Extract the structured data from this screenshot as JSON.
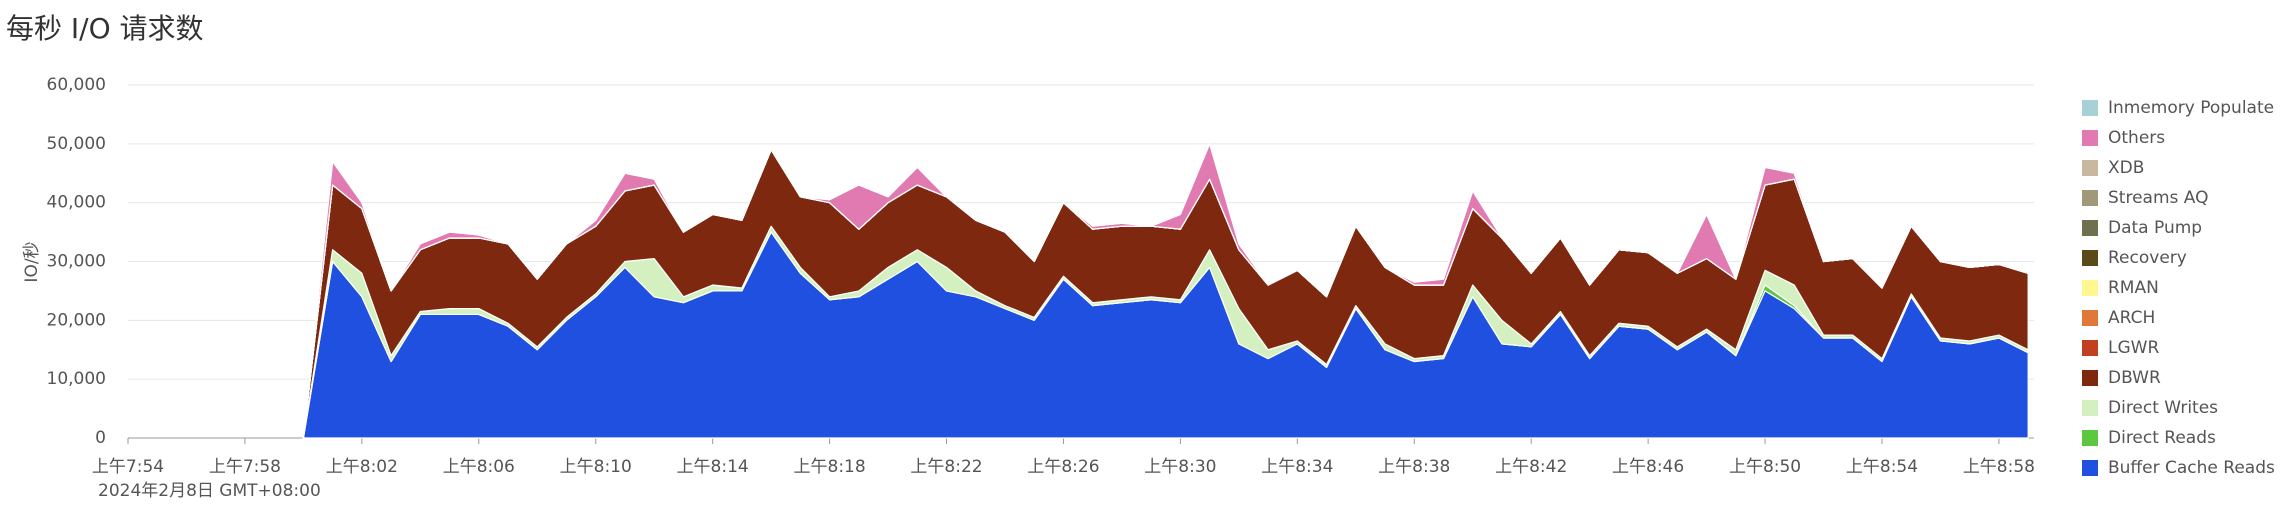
{
  "chart_data": {
    "type": "stacked_area",
    "title": "每秒 I/O 请求数",
    "y_label": "IO/秒",
    "x_sublabel": "2024年2月8日 GMT+08:00",
    "x": [
      480,
      481,
      482,
      483,
      484,
      485,
      486,
      487,
      488,
      489,
      490,
      491,
      492,
      493,
      494,
      495,
      496,
      497,
      498,
      499,
      500,
      501,
      502,
      503,
      504,
      505,
      506,
      507,
      508,
      509,
      510,
      511,
      512,
      513,
      514,
      515,
      516,
      517,
      518,
      519,
      520,
      521,
      522,
      523,
      524,
      525,
      526,
      527,
      528,
      529,
      530,
      531,
      532,
      533,
      534,
      535,
      536,
      537,
      538,
      539
    ],
    "xlim": [
      474,
      539.2
    ],
    "xticks": [
      {
        "value": 474,
        "label": "上午7:54"
      },
      {
        "value": 478,
        "label": "上午7:58"
      },
      {
        "value": 482,
        "label": "上午8:02"
      },
      {
        "value": 486,
        "label": "上午8:06"
      },
      {
        "value": 490,
        "label": "上午8:10"
      },
      {
        "value": 494,
        "label": "上午8:14"
      },
      {
        "value": 498,
        "label": "上午8:18"
      },
      {
        "value": 502,
        "label": "上午8:22"
      },
      {
        "value": 506,
        "label": "上午8:26"
      },
      {
        "value": 510,
        "label": "上午8:30"
      },
      {
        "value": 514,
        "label": "上午8:34"
      },
      {
        "value": 518,
        "label": "上午8:38"
      },
      {
        "value": 522,
        "label": "上午8:42"
      },
      {
        "value": 526,
        "label": "上午8:46"
      },
      {
        "value": 530,
        "label": "上午8:50"
      },
      {
        "value": 534,
        "label": "上午8:54"
      },
      {
        "value": 538,
        "label": "上午8:58"
      }
    ],
    "ylim": [
      0,
      60000
    ],
    "yticks": [
      0,
      {
        "value": 10000,
        "label": "10,000"
      },
      {
        "value": 20000,
        "label": "20,000"
      },
      {
        "value": 30000,
        "label": "30,000"
      },
      {
        "value": 40000,
        "label": "40,000"
      },
      {
        "value": 50000,
        "label": "50,000"
      },
      {
        "value": 60000,
        "label": "60,000"
      }
    ],
    "grid": true,
    "series": [
      {
        "name": "Inmemory Populate",
        "color": "#a8d0d8",
        "values": [
          0,
          0,
          0,
          0,
          0,
          0,
          0,
          0,
          0,
          0,
          0,
          0,
          0,
          0,
          0,
          0,
          0,
          0,
          0,
          0,
          0,
          0,
          0,
          0,
          0,
          0,
          0,
          0,
          0,
          0,
          0,
          0,
          0,
          0,
          0,
          0,
          0,
          0,
          0,
          0,
          0,
          0,
          0,
          0,
          0,
          0,
          0,
          0,
          0,
          0,
          0,
          0,
          0,
          0,
          0,
          0,
          0,
          0,
          0,
          0
        ]
      },
      {
        "name": "Others",
        "color": "#e07ab0",
        "values": [
          0,
          4000,
          1000,
          0,
          1000,
          1000,
          500,
          0,
          0,
          0,
          1000,
          3000,
          1000,
          0,
          0,
          0,
          0,
          0,
          500,
          7500,
          1000,
          3000,
          0,
          0,
          0,
          0,
          0,
          500,
          500,
          0,
          2500,
          6000,
          1000,
          0,
          0,
          0,
          0,
          0,
          500,
          1000,
          3000,
          0,
          0,
          0,
          0,
          0,
          0,
          0,
          7500,
          0,
          3000,
          1000,
          0,
          0,
          0,
          0,
          0,
          0,
          0,
          0
        ]
      },
      {
        "name": "XDB",
        "color": "#c8b8a0",
        "values": [
          0,
          0,
          0,
          0,
          0,
          0,
          0,
          0,
          0,
          0,
          0,
          0,
          0,
          0,
          0,
          0,
          0,
          0,
          0,
          0,
          0,
          0,
          0,
          0,
          0,
          0,
          0,
          0,
          0,
          0,
          0,
          0,
          0,
          0,
          0,
          0,
          0,
          0,
          0,
          0,
          0,
          0,
          0,
          0,
          0,
          0,
          0,
          0,
          0,
          0,
          0,
          0,
          0,
          0,
          0,
          0,
          0,
          0,
          0,
          0
        ]
      },
      {
        "name": "Streams AQ",
        "color": "#a09878",
        "values": [
          0,
          0,
          0,
          0,
          0,
          0,
          0,
          0,
          0,
          0,
          0,
          0,
          0,
          0,
          0,
          0,
          0,
          0,
          0,
          0,
          0,
          0,
          0,
          0,
          0,
          0,
          0,
          0,
          0,
          0,
          0,
          0,
          0,
          0,
          0,
          0,
          0,
          0,
          0,
          0,
          0,
          0,
          0,
          0,
          0,
          0,
          0,
          0,
          0,
          0,
          0,
          0,
          0,
          0,
          0,
          0,
          0,
          0,
          0,
          0
        ]
      },
      {
        "name": "Data Pump",
        "color": "#707050",
        "values": [
          0,
          0,
          0,
          0,
          0,
          0,
          0,
          0,
          0,
          0,
          0,
          0,
          0,
          0,
          0,
          0,
          0,
          0,
          0,
          0,
          0,
          0,
          0,
          0,
          0,
          0,
          0,
          0,
          0,
          0,
          0,
          0,
          0,
          0,
          0,
          0,
          0,
          0,
          0,
          0,
          0,
          0,
          0,
          0,
          0,
          0,
          0,
          0,
          0,
          0,
          0,
          0,
          0,
          0,
          0,
          0,
          0,
          0,
          0,
          0
        ]
      },
      {
        "name": "Recovery",
        "color": "#5a4a18",
        "values": [
          0,
          0,
          0,
          0,
          0,
          0,
          0,
          0,
          0,
          0,
          0,
          0,
          0,
          0,
          0,
          0,
          0,
          0,
          0,
          0,
          0,
          0,
          0,
          0,
          0,
          0,
          0,
          0,
          0,
          0,
          0,
          0,
          0,
          0,
          0,
          0,
          0,
          0,
          0,
          0,
          0,
          0,
          0,
          0,
          0,
          0,
          0,
          0,
          0,
          0,
          0,
          0,
          0,
          0,
          0,
          0,
          0,
          0,
          0,
          0
        ]
      },
      {
        "name": "RMAN",
        "color": "#fff890",
        "values": [
          0,
          0,
          0,
          0,
          0,
          0,
          0,
          0,
          0,
          0,
          0,
          0,
          0,
          0,
          0,
          0,
          0,
          0,
          0,
          0,
          0,
          0,
          0,
          0,
          0,
          0,
          0,
          0,
          0,
          0,
          0,
          0,
          0,
          0,
          0,
          0,
          0,
          0,
          0,
          0,
          0,
          0,
          0,
          0,
          0,
          0,
          0,
          0,
          0,
          0,
          0,
          0,
          0,
          0,
          0,
          0,
          0,
          0,
          0,
          0
        ]
      },
      {
        "name": "ARCH",
        "color": "#e07838",
        "values": [
          0,
          0,
          0,
          0,
          0,
          0,
          0,
          0,
          0,
          0,
          0,
          0,
          0,
          0,
          0,
          0,
          0,
          0,
          0,
          0,
          0,
          0,
          0,
          0,
          0,
          0,
          0,
          0,
          0,
          0,
          0,
          0,
          0,
          0,
          0,
          0,
          0,
          0,
          0,
          0,
          0,
          0,
          0,
          0,
          0,
          0,
          0,
          0,
          0,
          0,
          0,
          0,
          0,
          0,
          0,
          0,
          0,
          0,
          0,
          0
        ]
      },
      {
        "name": "LGWR",
        "color": "#c04020",
        "values": [
          0,
          0,
          0,
          0,
          0,
          0,
          0,
          0,
          0,
          0,
          0,
          0,
          0,
          0,
          0,
          0,
          0,
          0,
          0,
          0,
          0,
          0,
          0,
          0,
          0,
          0,
          0,
          0,
          0,
          0,
          0,
          0,
          0,
          0,
          0,
          0,
          0,
          0,
          0,
          0,
          0,
          0,
          0,
          0,
          0,
          0,
          0,
          0,
          0,
          0,
          0,
          0,
          0,
          0,
          0,
          0,
          0,
          0,
          0,
          0
        ]
      },
      {
        "name": "DBWR",
        "color": "#7f2810",
        "values": [
          0,
          11000,
          11000,
          11000,
          10500,
          12000,
          12000,
          13500,
          11500,
          12500,
          11500,
          12000,
          12500,
          11000,
          12000,
          11500,
          13000,
          12000,
          16000,
          10500,
          11000,
          11000,
          12000,
          12000,
          12500,
          9500,
          12500,
          12500,
          12500,
          12000,
          12000,
          12000,
          10000,
          11000,
          12000,
          11500,
          13500,
          13000,
          12500,
          12000,
          13000,
          14000,
          12000,
          12500,
          12000,
          12500,
          12500,
          12500,
          12000,
          12000,
          14500,
          18000,
          12500,
          13000,
          12000,
          11500,
          13000,
          12500,
          12000,
          13000
        ]
      },
      {
        "name": "Direct Writes",
        "color": "#d4f0c0",
        "values": [
          0,
          2000,
          4000,
          1000,
          500,
          1000,
          1000,
          500,
          500,
          500,
          500,
          1000,
          6500,
          1000,
          1000,
          500,
          1000,
          1000,
          500,
          1000,
          2000,
          2000,
          4000,
          1000,
          500,
          500,
          500,
          500,
          500,
          500,
          500,
          3000,
          6000,
          1500,
          500,
          500,
          500,
          1000,
          500,
          500,
          2000,
          4000,
          500,
          500,
          500,
          500,
          500,
          500,
          500,
          1000,
          2500,
          3500,
          500,
          500,
          500,
          500,
          500,
          500,
          500,
          500
        ]
      },
      {
        "name": "Direct Reads",
        "color": "#5cc840",
        "values": [
          0,
          0,
          0,
          0,
          0,
          0,
          0,
          0,
          0,
          0,
          0,
          0,
          0,
          0,
          0,
          0,
          0,
          0,
          0,
          0,
          0,
          0,
          0,
          0,
          0,
          0,
          0,
          0,
          0,
          0,
          0,
          0,
          0,
          0,
          0,
          0,
          0,
          0,
          0,
          0,
          0,
          0,
          0,
          0,
          0,
          0,
          0,
          0,
          0,
          0,
          1000,
          500,
          0,
          0,
          0,
          0,
          0,
          0,
          0,
          0
        ]
      },
      {
        "name": "Buffer Cache Reads",
        "color": "#2050e0",
        "values": [
          0,
          30000,
          24000,
          13000,
          21000,
          21000,
          21000,
          19000,
          15000,
          20000,
          24000,
          29000,
          24000,
          23000,
          25000,
          25000,
          35000,
          28000,
          23500,
          24000,
          27000,
          30000,
          25000,
          24000,
          22000,
          20000,
          27000,
          22500,
          23000,
          23500,
          23000,
          29000,
          16000,
          13500,
          16000,
          12000,
          22000,
          15000,
          13000,
          13500,
          24000,
          16000,
          15500,
          21000,
          13500,
          19000,
          18500,
          15000,
          18000,
          14000,
          25000,
          22000,
          17000,
          17000,
          13000,
          24000,
          16500,
          16000,
          17000,
          14500
        ]
      }
    ]
  }
}
